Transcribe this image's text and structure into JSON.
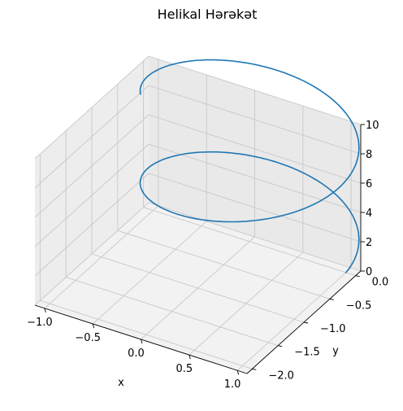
{
  "chart_data": {
    "type": "line3d",
    "title": "Helikal Hərəkət",
    "xlabel": "x",
    "ylabel": "y",
    "zlabel": "",
    "xlim": [
      -1.1,
      1.1
    ],
    "ylim": [
      -2.1,
      0.1
    ],
    "zlim": [
      0,
      10
    ],
    "xticks": [
      -1.0,
      -0.5,
      0.0,
      0.5,
      1.0
    ],
    "xtick_labels": [
      "−1.0",
      "−0.5",
      "0.0",
      "0.5",
      "1.0"
    ],
    "yticks": [
      -2.0,
      -1.5,
      -1.0,
      -0.5,
      0.0
    ],
    "ytick_labels": [
      "−2.0",
      "−1.5",
      "−1.0",
      "−0.5",
      "0.0"
    ],
    "zticks": [
      0,
      2,
      4,
      6,
      8,
      10
    ],
    "ztick_labels": [
      "0",
      "2",
      "4",
      "6",
      "8",
      "10"
    ],
    "grid": true,
    "series": [
      {
        "color": "#1f77b4",
        "parametric": {
          "x": "cos(t)",
          "y": "sin(t)",
          "z": "t",
          "t_range": [
            0,
            10
          ]
        }
      }
    ]
  }
}
